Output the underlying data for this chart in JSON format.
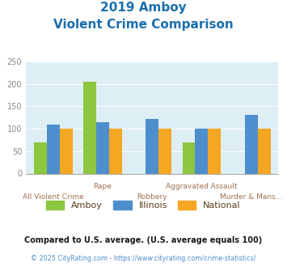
{
  "title_line1": "2019 Amboy",
  "title_line2": "Violent Crime Comparison",
  "title_color": "#1a6faf",
  "categories": [
    "All Violent Crime",
    "Rape",
    "Robbery",
    "Aggravated Assault",
    "Murder & Mans..."
  ],
  "amboy": [
    70,
    205,
    0,
    70,
    0
  ],
  "illinois": [
    109,
    114,
    121,
    101,
    131
  ],
  "national": [
    100,
    100,
    100,
    100,
    100
  ],
  "amboy_color": "#8dc63f",
  "illinois_color": "#4d8fcc",
  "national_color": "#f5a623",
  "ylim": [
    0,
    250
  ],
  "yticks": [
    0,
    50,
    100,
    150,
    200,
    250
  ],
  "bg_color": "#ddeef5",
  "legend_labels": [
    "Amboy",
    "Illinois",
    "National"
  ],
  "legend_text_color": "#5a3e1b",
  "footnote1": "Compared to U.S. average. (U.S. average equals 100)",
  "footnote2": "© 2025 CityRating.com - https://www.cityrating.com/crime-statistics/",
  "footnote1_color": "#1a1a1a",
  "footnote2_color": "#4d8fcc",
  "x_label_color": "#a07050",
  "ytick_color": "#888888"
}
